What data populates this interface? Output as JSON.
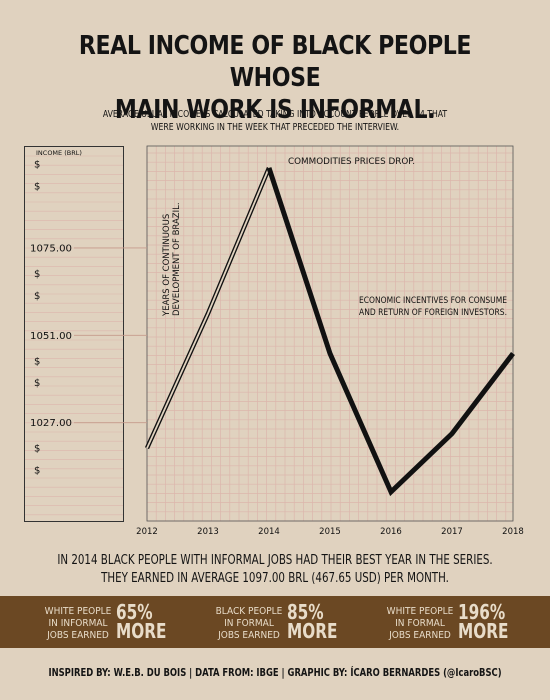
{
  "header": {
    "title_line1": "REAL INCOME OF BLACK PEOPLE WHOSE",
    "title_line2": "MAIN WORK IS INFORMAL.",
    "subtitle_line1": "AVERAGE USUAL INCOME IS CALCULATED TAKING INTO ACCOUNT PEOPLE OVER 14 THAT",
    "subtitle_line2": "WERE WORKING IN THE WEEK THAT PRECEDED THE INTERVIEW."
  },
  "chart_data": {
    "type": "line",
    "x": [
      "2012",
      "2013",
      "2014",
      "2015",
      "2016",
      "2017",
      "2018"
    ],
    "values": [
      1020,
      1057,
      1097,
      1046,
      1008,
      1024,
      1046
    ],
    "ylabel": "INCOME (BRL)",
    "ylim": [
      1000,
      1103
    ],
    "y_ticks": [
      {
        "value": 1098,
        "label": "$"
      },
      {
        "value": 1092,
        "label": "$"
      },
      {
        "value": 1075,
        "label": "1075.00"
      },
      {
        "value": 1068,
        "label": "$"
      },
      {
        "value": 1062,
        "label": "$"
      },
      {
        "value": 1051,
        "label": "1051.00"
      },
      {
        "value": 1044,
        "label": "$"
      },
      {
        "value": 1038,
        "label": "$"
      },
      {
        "value": 1027,
        "label": "1027.00"
      },
      {
        "value": 1020,
        "label": "$"
      },
      {
        "value": 1014,
        "label": "$"
      }
    ],
    "highlight_from_index": 2,
    "annotations": [
      {
        "text_line1": "YEARS OF CONTINUOUS",
        "text_line2": "DEVELOPMENT OF BRAZIL."
      },
      {
        "text_line1": "COMMODITIES PRICES DROP.",
        "text_line2": ""
      },
      {
        "text_line1": "ECONOMIC INCENTIVES FOR CONSUME",
        "text_line2": "AND RETURN OF FOREIGN INVESTORS."
      }
    ],
    "grid": true,
    "colors": {
      "line": "#111111",
      "grid": "#c69a8c",
      "grid_minor": "#dcb6ac",
      "background": "#e0d2bf"
    }
  },
  "summary": {
    "line1": "IN 2014 BLACK PEOPLE WITH INFORMAL JOBS HAD THEIR BEST YEAR IN THE SERIES.",
    "line2": "THEY EARNED IN AVERAGE 1097.00 BRL (467.65 USD) PER MONTH."
  },
  "stats": [
    {
      "label_line1": "WHITE PEOPLE",
      "label_line2": "IN INFORMAL",
      "label_line3": "JOBS EARNED",
      "value": "65%",
      "unit": "MORE"
    },
    {
      "label_line1": "BLACK PEOPLE",
      "label_line2": "IN FORMAL",
      "label_line3": "JOBS EARNED",
      "value": "85%",
      "unit": "MORE"
    },
    {
      "label_line1": "WHITE PEOPLE",
      "label_line2": "IN FORMAL",
      "label_line3": "JOBS EARNED",
      "value": "196%",
      "unit": "MORE"
    }
  ],
  "colors": {
    "band": "#6b4823",
    "band_text": "#e8dcc9",
    "page": "#e0d2bf"
  },
  "credits": "INSPIRED BY: W.E.B. DU BOIS | DATA FROM: IBGE | GRAPHIC BY: ÍCARO BERNARDES (@IcaroBSC)"
}
